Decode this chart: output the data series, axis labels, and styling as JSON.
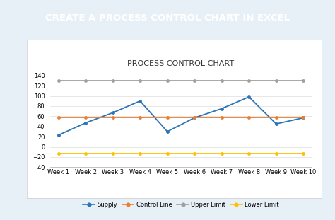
{
  "title": "PROCESS CONTROL CHART",
  "header_text": "CREATE A PROCESS CONTROL CHART IN EXCEL",
  "header_bg": "#2E75B6",
  "header_text_color": "#FFFFFF",
  "chart_bg": "#FFFFFF",
  "outer_bg": "#E8F0F7",
  "chart_border": "#CCCCCC",
  "weeks": [
    "Week 1",
    "Week 2",
    "Week 3",
    "Week 4",
    "Week 5",
    "Week 6",
    "Week 7",
    "Week 8",
    "Week 9",
    "Week 10"
  ],
  "supply": [
    23,
    47,
    67,
    90,
    30,
    57,
    75,
    98,
    45,
    57
  ],
  "control_line": [
    58,
    58,
    58,
    58,
    58,
    58,
    58,
    58,
    58,
    58
  ],
  "upper_limit": [
    130,
    130,
    130,
    130,
    130,
    130,
    130,
    130,
    130,
    130
  ],
  "lower_limit": [
    -13,
    -13,
    -13,
    -13,
    -13,
    -13,
    -13,
    -13,
    -13,
    -13
  ],
  "supply_color": "#2E75B6",
  "control_line_color": "#ED7D31",
  "upper_limit_color": "#A0A0A0",
  "lower_limit_color": "#FFC000",
  "ylim": [
    -40,
    150
  ],
  "yticks": [
    -40,
    -20,
    0,
    20,
    40,
    60,
    80,
    100,
    120,
    140
  ],
  "title_fontsize": 8,
  "legend_fontsize": 6,
  "tick_fontsize": 6
}
